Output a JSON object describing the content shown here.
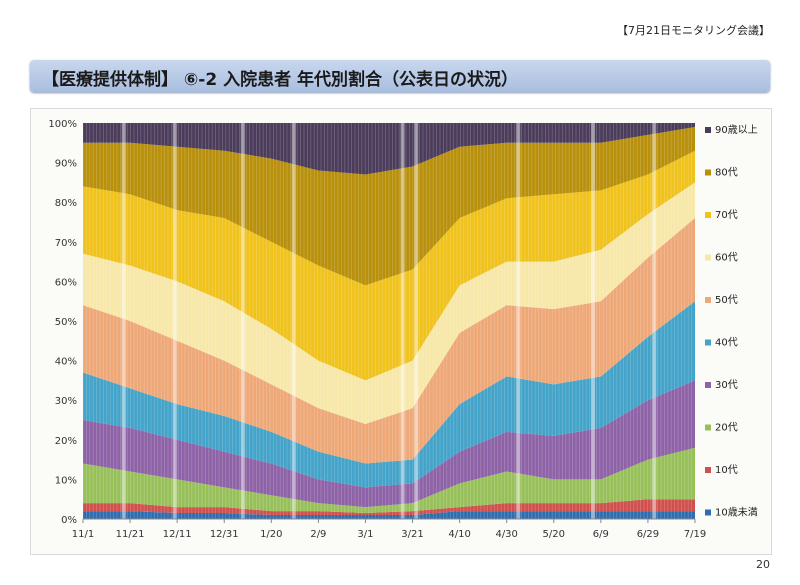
{
  "header": {
    "meeting_label": "【7月21日モニタリング会議】"
  },
  "slide": {
    "title": "【医療提供体制】 ⑥-2 入院患者 年代別割合（公表日の状況）",
    "page_number": "20"
  },
  "colors": {
    "90歳以上": "#4a3c5a",
    "80代": "#b8900c",
    "70代": "#f0c21c",
    "60代": "#f7e7a8",
    "50代": "#eea878",
    "40代": "#43a3c8",
    "30代": "#8e62a6",
    "20代": "#98c05a",
    "10代": "#d0504e",
    "10歳未満": "#2e6db0"
  },
  "chart_data": {
    "type": "area",
    "stacked": true,
    "title": "",
    "xlabel": "",
    "ylabel": "",
    "ylim": [
      0,
      100
    ],
    "yticks": [
      "0%",
      "10%",
      "20%",
      "30%",
      "40%",
      "50%",
      "60%",
      "70%",
      "80%",
      "90%",
      "100%"
    ],
    "categories": [
      "11/1",
      "11/21",
      "12/11",
      "12/31",
      "1/20",
      "2/9",
      "3/1",
      "3/21",
      "4/10",
      "4/30",
      "5/20",
      "6/9",
      "6/29",
      "7/19"
    ],
    "legend_position": "right",
    "legend": [
      "90歳以上",
      "80代",
      "70代",
      "60代",
      "50代",
      "40代",
      "30代",
      "20代",
      "10代",
      "10歳未満"
    ],
    "series_cumulative_top_percent": [
      {
        "name": "10歳未満",
        "values": [
          2,
          2,
          1.5,
          1.5,
          1,
          1,
          1,
          1,
          2,
          2,
          2,
          2,
          2,
          2
        ]
      },
      {
        "name": "10代",
        "values": [
          4,
          4,
          3,
          3,
          2,
          2,
          1.5,
          2,
          3,
          4,
          4,
          4,
          5,
          5
        ]
      },
      {
        "name": "20代",
        "values": [
          14,
          12,
          10,
          8,
          6,
          4,
          3,
          4,
          9,
          12,
          10,
          10,
          15,
          18
        ]
      },
      {
        "name": "30代",
        "values": [
          25,
          23,
          20,
          17,
          14,
          10,
          8,
          9,
          17,
          22,
          21,
          23,
          30,
          35
        ]
      },
      {
        "name": "40代",
        "values": [
          37,
          33,
          29,
          26,
          22,
          17,
          14,
          15,
          29,
          36,
          34,
          36,
          46,
          55
        ]
      },
      {
        "name": "50代",
        "values": [
          54,
          50,
          45,
          40,
          34,
          28,
          24,
          28,
          47,
          54,
          53,
          55,
          66,
          76
        ]
      },
      {
        "name": "60代",
        "values": [
          67,
          64,
          60,
          55,
          48,
          40,
          35,
          40,
          59,
          65,
          65,
          68,
          77,
          85
        ]
      },
      {
        "name": "70代",
        "values": [
          84,
          82,
          78,
          76,
          70,
          64,
          59,
          63,
          76,
          81,
          82,
          83,
          87,
          93
        ]
      },
      {
        "name": "80代",
        "values": [
          95,
          95,
          94,
          93,
          91,
          88,
          87,
          89,
          94,
          95,
          95,
          95,
          97,
          99
        ]
      },
      {
        "name": "90歳以上",
        "values": [
          100,
          100,
          100,
          100,
          100,
          100,
          100,
          100,
          100,
          100,
          100,
          100,
          100,
          100
        ]
      }
    ]
  }
}
